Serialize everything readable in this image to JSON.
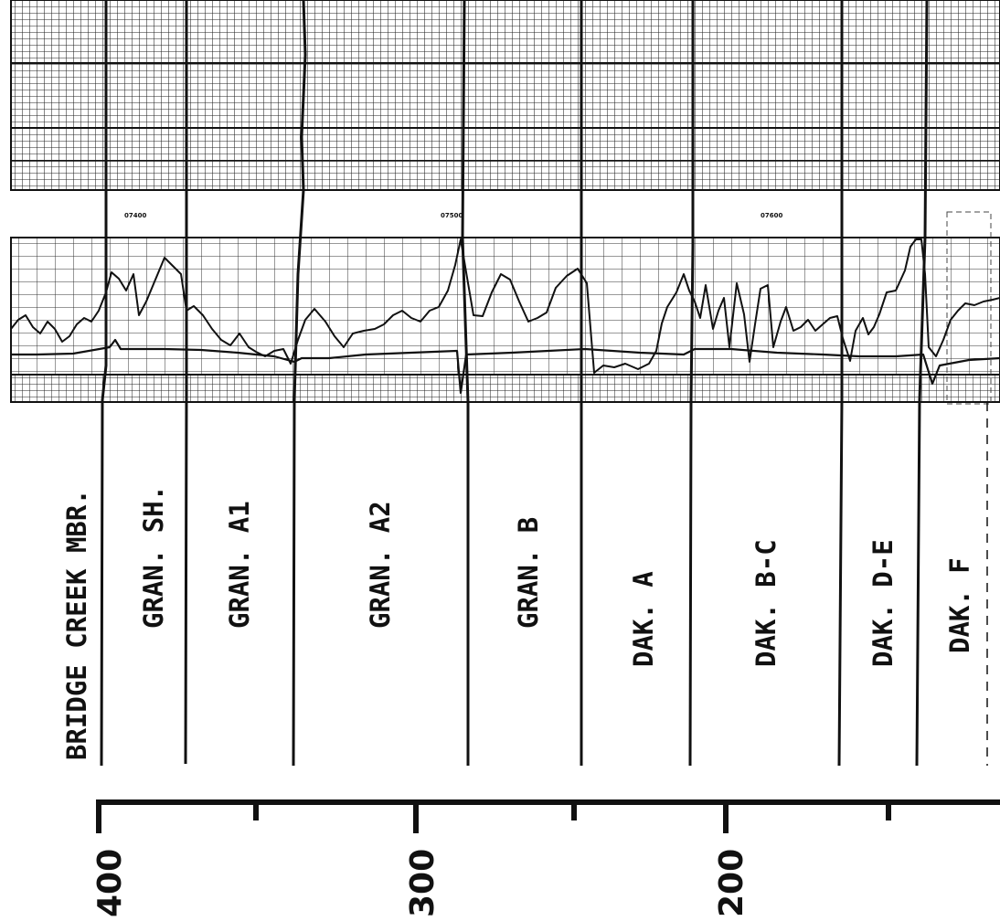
{
  "units": [
    {
      "label": "BRIDGE CREEK MBR."
    },
    {
      "label": "GRAN. SH."
    },
    {
      "label": "GRAN. A1"
    },
    {
      "label": "GRAN. A2"
    },
    {
      "label": "GRAN. B"
    },
    {
      "label": "DAK. A"
    },
    {
      "label": "DAK. B-C"
    },
    {
      "label": "DAK. D-E"
    },
    {
      "label": "DAK. F"
    }
  ],
  "depth_marks": [
    "07400",
    "07500",
    "07600"
  ],
  "scale": {
    "labels": [
      "400",
      "300",
      "200"
    ]
  }
}
